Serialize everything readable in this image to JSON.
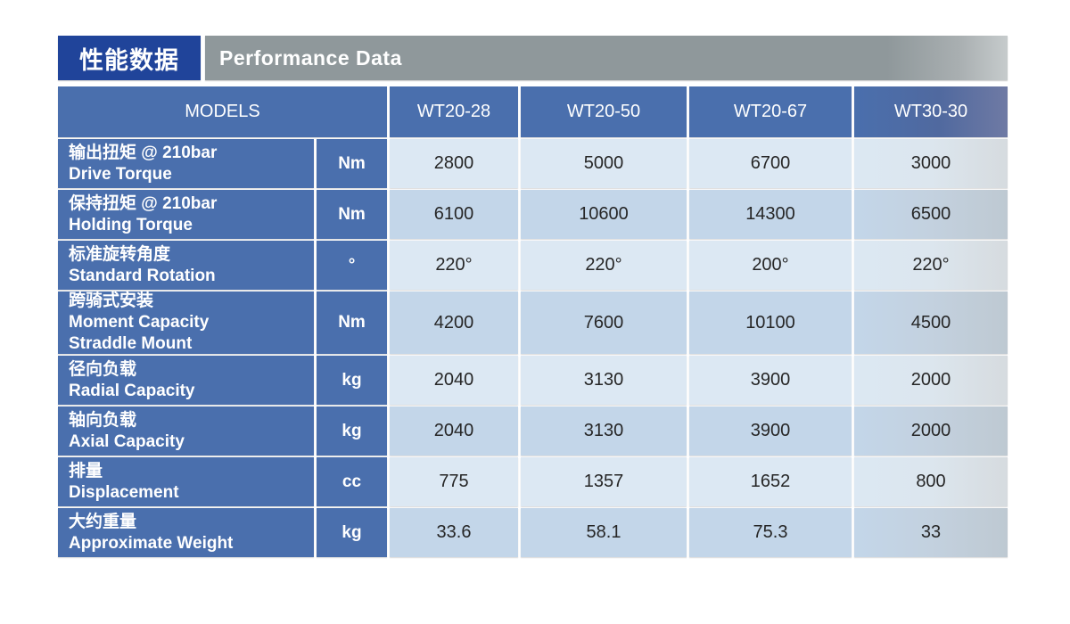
{
  "banner": {
    "title_zh": "性能数据",
    "title_en": "Performance Data"
  },
  "table": {
    "models_header": "MODELS",
    "model_columns": [
      "WT20-28",
      "WT20-50",
      "WT20-67",
      "WT30-30"
    ],
    "rows": [
      {
        "label_zh": "输出扭矩 @ 210bar",
        "label_en": "Drive Torque",
        "label_en2": "",
        "unit": "Nm",
        "values": [
          "2800",
          "5000",
          "6700",
          "3000"
        ]
      },
      {
        "label_zh": "保持扭矩 @ 210bar",
        "label_en": "Holding Torque",
        "label_en2": "",
        "unit": "Nm",
        "values": [
          "6100",
          "10600",
          "14300",
          "6500"
        ]
      },
      {
        "label_zh": "标准旋转角度",
        "label_en": "Standard Rotation",
        "label_en2": "",
        "unit": "°",
        "values": [
          "220°",
          "220°",
          "200°",
          "220°"
        ]
      },
      {
        "label_zh": "跨骑式安装",
        "label_en": "Moment Capacity",
        "label_en2": "Straddle Mount",
        "unit": "Nm",
        "values": [
          "4200",
          "7600",
          "10100",
          "4500"
        ]
      },
      {
        "label_zh": "径向负载",
        "label_en": "Radial Capacity",
        "label_en2": "",
        "unit": "kg",
        "values": [
          "2040",
          "3130",
          "3900",
          "2000"
        ]
      },
      {
        "label_zh": "轴向负载",
        "label_en": "Axial Capacity",
        "label_en2": "",
        "unit": "kg",
        "values": [
          "2040",
          "3130",
          "3900",
          "2000"
        ]
      },
      {
        "label_zh": "排量",
        "label_en": "Displacement",
        "label_en2": "",
        "unit": "cc",
        "values": [
          "775",
          "1357",
          "1652",
          "800"
        ]
      },
      {
        "label_zh": "大约重量",
        "label_en": "Approximate Weight",
        "label_en2": "",
        "unit": "kg",
        "values": [
          "33.6",
          "58.1",
          "75.3",
          "33"
        ]
      }
    ]
  },
  "colors": {
    "banner_blue": "#20449a",
    "banner_gray": "#8f989b",
    "table_header_blue": "#4a6fad",
    "row_light": "#dce8f3",
    "row_dark": "#c3d6e9",
    "value_text": "#262626",
    "fade_gray_right": "#d6dbdf"
  }
}
